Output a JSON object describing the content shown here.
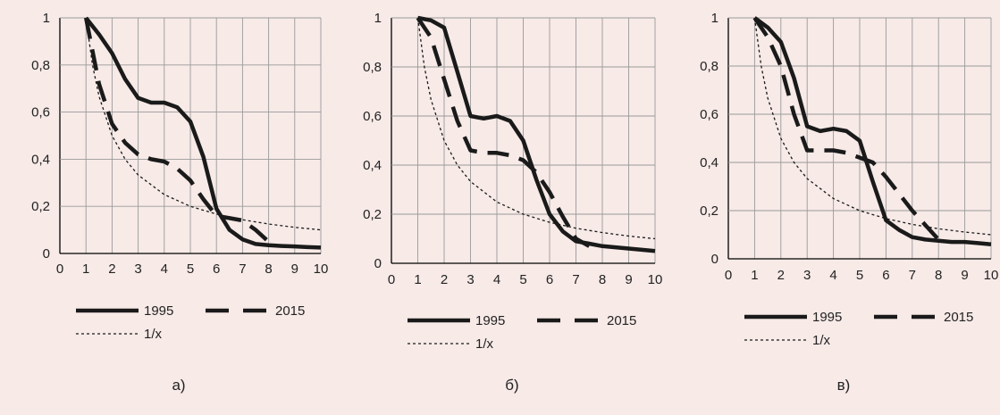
{
  "chart_data": [
    {
      "type": "line",
      "caption": "а)",
      "xlim": [
        0,
        10
      ],
      "ylim": [
        0,
        1
      ],
      "xticks": [
        "0",
        "1",
        "2",
        "3",
        "4",
        "5",
        "6",
        "7",
        "8",
        "9",
        "10"
      ],
      "yticks": [
        "0",
        "0,2",
        "0,4",
        "0,6",
        "0,8",
        "1"
      ],
      "grid": true,
      "legend_position": "bottom",
      "series": [
        {
          "name": "1995",
          "style": "solid",
          "points": [
            [
              1,
              1
            ],
            [
              1.5,
              0.93
            ],
            [
              2,
              0.85
            ],
            [
              2.5,
              0.74
            ],
            [
              3,
              0.66
            ],
            [
              3.5,
              0.64
            ],
            [
              4,
              0.64
            ],
            [
              4.5,
              0.62
            ],
            [
              5,
              0.56
            ],
            [
              5.5,
              0.41
            ],
            [
              6,
              0.19
            ],
            [
              6.5,
              0.1
            ],
            [
              7,
              0.06
            ],
            [
              7.5,
              0.04
            ],
            [
              8,
              0.035
            ],
            [
              8.5,
              0.032
            ],
            [
              9,
              0.03
            ],
            [
              9.5,
              0.027
            ],
            [
              10,
              0.025
            ]
          ]
        },
        {
          "name": "2015",
          "style": "dashed",
          "points": [
            [
              1,
              1
            ],
            [
              1.5,
              0.72
            ],
            [
              2,
              0.55
            ],
            [
              2.5,
              0.47
            ],
            [
              3,
              0.42
            ],
            [
              3.5,
              0.4
            ],
            [
              4,
              0.39
            ],
            [
              4.5,
              0.36
            ],
            [
              5,
              0.31
            ],
            [
              5.5,
              0.23
            ],
            [
              6,
              0.16
            ],
            [
              6.5,
              0.15
            ],
            [
              7,
              0.14
            ],
            [
              7.5,
              0.1
            ],
            [
              8,
              0.05
            ]
          ]
        },
        {
          "name": "1/x",
          "style": "dotted",
          "points": [
            [
              1,
              1
            ],
            [
              1.25,
              0.8
            ],
            [
              1.5,
              0.667
            ],
            [
              2,
              0.5
            ],
            [
              2.5,
              0.4
            ],
            [
              3,
              0.333
            ],
            [
              4,
              0.25
            ],
            [
              5,
              0.2
            ],
            [
              6,
              0.167
            ],
            [
              7,
              0.143
            ],
            [
              8,
              0.125
            ],
            [
              9,
              0.111
            ],
            [
              10,
              0.1
            ]
          ]
        }
      ]
    },
    {
      "type": "line",
      "caption": "б)",
      "xlim": [
        0,
        10
      ],
      "ylim": [
        0,
        1
      ],
      "xticks": [
        "0",
        "1",
        "2",
        "3",
        "4",
        "5",
        "6",
        "7",
        "8",
        "9",
        "10"
      ],
      "yticks": [
        "0",
        "0,2",
        "0,4",
        "0,6",
        "0,8",
        "1"
      ],
      "grid": true,
      "legend_position": "bottom",
      "series": [
        {
          "name": "1995",
          "style": "solid",
          "points": [
            [
              1,
              1
            ],
            [
              1.5,
              0.99
            ],
            [
              2,
              0.96
            ],
            [
              2.5,
              0.78
            ],
            [
              3,
              0.6
            ],
            [
              3.5,
              0.59
            ],
            [
              4,
              0.6
            ],
            [
              4.5,
              0.58
            ],
            [
              5,
              0.5
            ],
            [
              5.5,
              0.34
            ],
            [
              6,
              0.2
            ],
            [
              6.5,
              0.13
            ],
            [
              7,
              0.09
            ],
            [
              7.5,
              0.08
            ],
            [
              8,
              0.07
            ],
            [
              8.5,
              0.065
            ],
            [
              9,
              0.06
            ],
            [
              9.5,
              0.055
            ],
            [
              10,
              0.05
            ]
          ]
        },
        {
          "name": "2015",
          "style": "dashed",
          "points": [
            [
              1,
              1
            ],
            [
              1.5,
              0.92
            ],
            [
              2,
              0.75
            ],
            [
              2.5,
              0.58
            ],
            [
              3,
              0.46
            ],
            [
              3.5,
              0.45
            ],
            [
              4,
              0.45
            ],
            [
              4.5,
              0.44
            ],
            [
              5,
              0.42
            ],
            [
              5.5,
              0.37
            ],
            [
              6,
              0.29
            ],
            [
              6.5,
              0.19
            ],
            [
              7,
              0.1
            ],
            [
              7.5,
              0.07
            ]
          ]
        },
        {
          "name": "1/x",
          "style": "dotted",
          "points": [
            [
              1,
              1
            ],
            [
              1.25,
              0.8
            ],
            [
              1.5,
              0.667
            ],
            [
              2,
              0.5
            ],
            [
              2.5,
              0.4
            ],
            [
              3,
              0.333
            ],
            [
              4,
              0.25
            ],
            [
              5,
              0.2
            ],
            [
              6,
              0.167
            ],
            [
              7,
              0.143
            ],
            [
              8,
              0.125
            ],
            [
              9,
              0.111
            ],
            [
              10,
              0.1
            ]
          ]
        }
      ]
    },
    {
      "type": "line",
      "caption": "в)",
      "xlim": [
        0,
        10
      ],
      "ylim": [
        0,
        1
      ],
      "xticks": [
        "0",
        "1",
        "2",
        "3",
        "4",
        "5",
        "6",
        "7",
        "8",
        "9",
        "10"
      ],
      "yticks": [
        "0",
        "0,2",
        "0,4",
        "0,6",
        "0,8",
        "1"
      ],
      "grid": true,
      "legend_position": "bottom",
      "series": [
        {
          "name": "1995",
          "style": "solid",
          "points": [
            [
              1,
              1
            ],
            [
              1.5,
              0.96
            ],
            [
              2,
              0.9
            ],
            [
              2.5,
              0.75
            ],
            [
              3,
              0.55
            ],
            [
              3.5,
              0.53
            ],
            [
              4,
              0.54
            ],
            [
              4.5,
              0.53
            ],
            [
              5,
              0.49
            ],
            [
              5.5,
              0.32
            ],
            [
              6,
              0.16
            ],
            [
              6.5,
              0.12
            ],
            [
              7,
              0.09
            ],
            [
              7.5,
              0.08
            ],
            [
              8,
              0.075
            ],
            [
              8.5,
              0.07
            ],
            [
              9,
              0.07
            ],
            [
              9.5,
              0.065
            ],
            [
              10,
              0.06
            ]
          ]
        },
        {
          "name": "2015",
          "style": "dashed",
          "points": [
            [
              1,
              1
            ],
            [
              1.5,
              0.92
            ],
            [
              2,
              0.8
            ],
            [
              2.5,
              0.6
            ],
            [
              3,
              0.45
            ],
            [
              3.5,
              0.45
            ],
            [
              4,
              0.45
            ],
            [
              4.5,
              0.44
            ],
            [
              5,
              0.42
            ],
            [
              5.5,
              0.4
            ],
            [
              6,
              0.34
            ],
            [
              6.5,
              0.27
            ],
            [
              7,
              0.2
            ],
            [
              7.5,
              0.14
            ],
            [
              8,
              0.08
            ]
          ]
        },
        {
          "name": "1/x",
          "style": "dotted",
          "points": [
            [
              1,
              1
            ],
            [
              1.25,
              0.8
            ],
            [
              1.5,
              0.667
            ],
            [
              2,
              0.5
            ],
            [
              2.5,
              0.4
            ],
            [
              3,
              0.333
            ],
            [
              4,
              0.25
            ],
            [
              5,
              0.2
            ],
            [
              6,
              0.167
            ],
            [
              7,
              0.143
            ],
            [
              8,
              0.125
            ],
            [
              9,
              0.111
            ],
            [
              10,
              0.1
            ]
          ]
        }
      ]
    }
  ]
}
